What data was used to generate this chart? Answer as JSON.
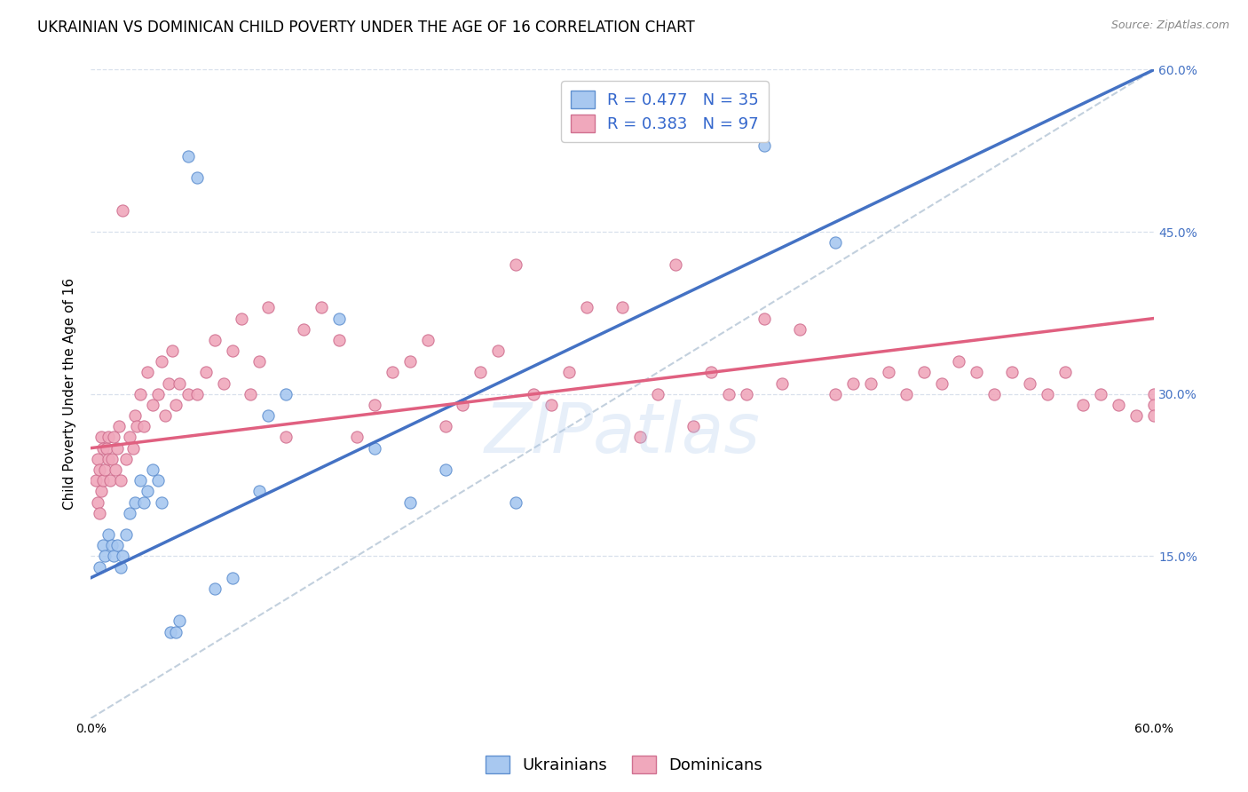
{
  "title": "UKRAINIAN VS DOMINICAN CHILD POVERTY UNDER THE AGE OF 16 CORRELATION CHART",
  "source": "Source: ZipAtlas.com",
  "ylabel": "Child Poverty Under the Age of 16",
  "xlim": [
    0.0,
    0.6
  ],
  "ylim": [
    0.0,
    0.6
  ],
  "ukr_color": "#a8c8f0",
  "ukr_edge_color": "#6090d0",
  "dom_color": "#f0a8bc",
  "dom_edge_color": "#d07090",
  "ukr_line_color": "#4472c4",
  "dom_line_color": "#e06080",
  "diag_color": "#b8c8d8",
  "watermark": "ZIPatlas",
  "legend_ukr_R": "0.477",
  "legend_ukr_N": "35",
  "legend_dom_R": "0.383",
  "legend_dom_N": "97",
  "ukr_line_x0": 0.0,
  "ukr_line_y0": 0.13,
  "ukr_line_x1": 0.6,
  "ukr_line_y1": 0.6,
  "dom_line_x0": 0.0,
  "dom_line_y0": 0.25,
  "dom_line_x1": 0.6,
  "dom_line_y1": 0.37,
  "background_color": "#ffffff",
  "grid_color": "#d8e0ec",
  "title_fontsize": 12,
  "label_fontsize": 11,
  "tick_fontsize": 10,
  "legend_fontsize": 13,
  "ukr_scatter_x": [
    0.005,
    0.007,
    0.008,
    0.01,
    0.012,
    0.013,
    0.015,
    0.017,
    0.018,
    0.02,
    0.022,
    0.025,
    0.028,
    0.03,
    0.032,
    0.035,
    0.038,
    0.04,
    0.045,
    0.048,
    0.05,
    0.055,
    0.06,
    0.07,
    0.08,
    0.095,
    0.1,
    0.11,
    0.14,
    0.16,
    0.18,
    0.2,
    0.24,
    0.38,
    0.42
  ],
  "ukr_scatter_y": [
    0.14,
    0.16,
    0.15,
    0.17,
    0.16,
    0.15,
    0.16,
    0.14,
    0.15,
    0.17,
    0.19,
    0.2,
    0.22,
    0.2,
    0.21,
    0.23,
    0.22,
    0.2,
    0.08,
    0.08,
    0.09,
    0.52,
    0.5,
    0.12,
    0.13,
    0.21,
    0.28,
    0.3,
    0.37,
    0.25,
    0.2,
    0.23,
    0.2,
    0.53,
    0.44
  ],
  "dom_scatter_x": [
    0.003,
    0.004,
    0.004,
    0.005,
    0.005,
    0.006,
    0.006,
    0.007,
    0.007,
    0.008,
    0.009,
    0.01,
    0.01,
    0.011,
    0.012,
    0.013,
    0.014,
    0.015,
    0.016,
    0.017,
    0.018,
    0.02,
    0.022,
    0.024,
    0.025,
    0.026,
    0.028,
    0.03,
    0.032,
    0.035,
    0.038,
    0.04,
    0.042,
    0.044,
    0.046,
    0.048,
    0.05,
    0.055,
    0.06,
    0.065,
    0.07,
    0.075,
    0.08,
    0.085,
    0.09,
    0.095,
    0.1,
    0.11,
    0.12,
    0.13,
    0.14,
    0.15,
    0.16,
    0.17,
    0.18,
    0.19,
    0.2,
    0.21,
    0.22,
    0.23,
    0.24,
    0.25,
    0.26,
    0.27,
    0.28,
    0.3,
    0.31,
    0.32,
    0.33,
    0.34,
    0.35,
    0.36,
    0.37,
    0.38,
    0.39,
    0.4,
    0.42,
    0.43,
    0.44,
    0.45,
    0.46,
    0.47,
    0.48,
    0.49,
    0.5,
    0.51,
    0.52,
    0.53,
    0.54,
    0.55,
    0.56,
    0.57,
    0.58,
    0.59,
    0.6,
    0.6,
    0.6
  ],
  "dom_scatter_y": [
    0.22,
    0.2,
    0.24,
    0.19,
    0.23,
    0.21,
    0.26,
    0.22,
    0.25,
    0.23,
    0.25,
    0.24,
    0.26,
    0.22,
    0.24,
    0.26,
    0.23,
    0.25,
    0.27,
    0.22,
    0.47,
    0.24,
    0.26,
    0.25,
    0.28,
    0.27,
    0.3,
    0.27,
    0.32,
    0.29,
    0.3,
    0.33,
    0.28,
    0.31,
    0.34,
    0.29,
    0.31,
    0.3,
    0.3,
    0.32,
    0.35,
    0.31,
    0.34,
    0.37,
    0.3,
    0.33,
    0.38,
    0.26,
    0.36,
    0.38,
    0.35,
    0.26,
    0.29,
    0.32,
    0.33,
    0.35,
    0.27,
    0.29,
    0.32,
    0.34,
    0.42,
    0.3,
    0.29,
    0.32,
    0.38,
    0.38,
    0.26,
    0.3,
    0.42,
    0.27,
    0.32,
    0.3,
    0.3,
    0.37,
    0.31,
    0.36,
    0.3,
    0.31,
    0.31,
    0.32,
    0.3,
    0.32,
    0.31,
    0.33,
    0.32,
    0.3,
    0.32,
    0.31,
    0.3,
    0.32,
    0.29,
    0.3,
    0.29,
    0.28,
    0.3,
    0.29,
    0.28
  ]
}
